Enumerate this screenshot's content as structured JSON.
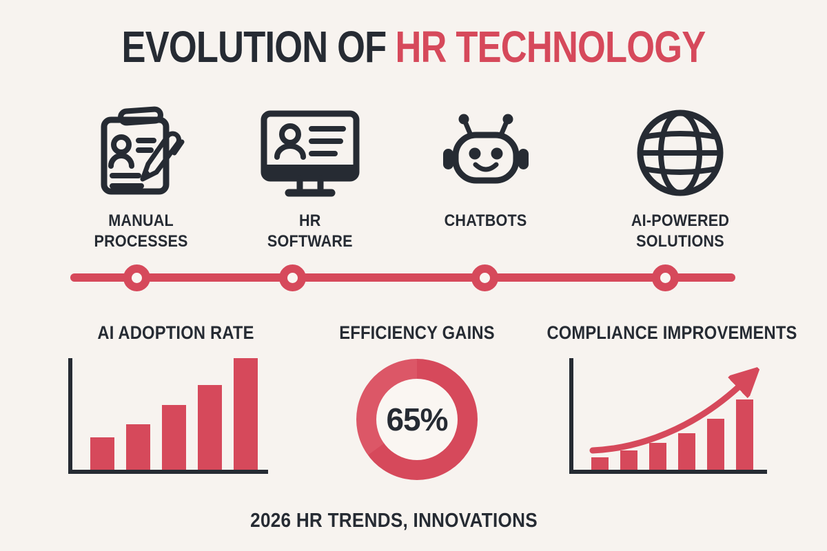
{
  "page": {
    "colors": {
      "background": "#f7f3ef",
      "ink": "#262b33",
      "accent": "#d6495b",
      "accent_light": "#dc5767",
      "node_hole": "#faf6f2"
    }
  },
  "title": {
    "prefix": "EVOLUTION OF",
    "highlight": "HR TECHNOLOGY"
  },
  "stages": [
    {
      "icon": "clipboard-pen-icon",
      "label_lines": [
        "MANUAL",
        "PROCESSES"
      ]
    },
    {
      "icon": "monitor-profile-icon",
      "label_lines": [
        "HR",
        "SOFTWARE"
      ]
    },
    {
      "icon": "robot-icon",
      "label_lines": [
        "CHATBOTS"
      ]
    },
    {
      "icon": "globe-icon",
      "label_lines": [
        "AI-POWERED",
        "SOLUTIONS"
      ]
    }
  ],
  "timeline": {
    "node_count": 4
  },
  "chart_data": [
    {
      "type": "bar",
      "title": "AI ADOPTION RATE",
      "values": [
        29,
        41,
        58,
        76,
        100
      ],
      "ylim": [
        0,
        100
      ],
      "unit": "relative height %",
      "grid": false,
      "tick_labels": false,
      "bar_color": "#d6495b"
    },
    {
      "type": "pie",
      "subtype": "donut",
      "title": "EFFICIENCY GAINS",
      "value": 65,
      "center_label": "65%",
      "ring_color": "#d6495b",
      "remainder_color": "#dc5767"
    },
    {
      "type": "bar",
      "title": "COMPLIANCE IMPROVEMENTS",
      "values": [
        18,
        27,
        38,
        52,
        73,
        100
      ],
      "ylim": [
        0,
        100
      ],
      "unit": "relative height %",
      "grid": false,
      "tick_labels": false,
      "trend_arrow": true,
      "bar_color": "#d6495b"
    }
  ],
  "footer": {
    "text": "2026 HR TRENDS, INNOVATIONS"
  }
}
